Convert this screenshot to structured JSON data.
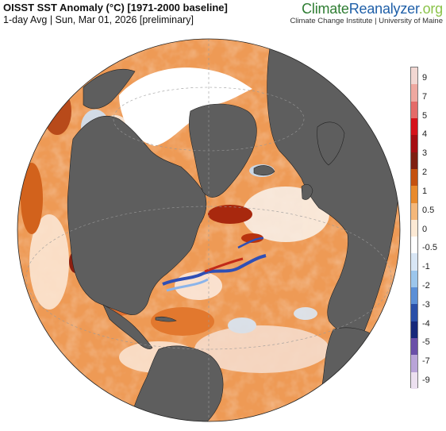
{
  "header": {
    "title": "OISST SST Anomaly (°C) [1971-2000 baseline]",
    "subtitle": "1-day Avg | Sun, Mar 01, 2026 [preliminary]"
  },
  "brand": {
    "part1": "Climate",
    "part2": "Reanalyzer",
    "part3": ".org",
    "subtitle": "Climate Change Institute | University of Maine"
  },
  "legend": {
    "labels": [
      "9",
      "7",
      "5",
      "4",
      "3",
      "2",
      "1",
      "0.5",
      "0",
      "-0.5",
      "-1",
      "-2",
      "-3",
      "-4",
      "-5",
      "-7",
      "-9"
    ],
    "colors": [
      "#f2d7d2",
      "#eea8a0",
      "#e46b68",
      "#d5121a",
      "#a50d12",
      "#7e1e10",
      "#c4510f",
      "#e88a2c",
      "#f4b77a",
      "#fce9d4",
      "#ffffff",
      "#d8e6f5",
      "#9cc6ec",
      "#5b8fd6",
      "#2a4fa8",
      "#16287a",
      "#6a4fa8",
      "#b9a4d8",
      "#ece0f0"
    ]
  },
  "colors": {
    "land": "#5e5e5e",
    "ice": "#ffffff",
    "warm": "#ec8a3c",
    "warm_strong": "#b8330e",
    "cool": "#a9cbef",
    "cool_strong": "#2f4fb5"
  }
}
